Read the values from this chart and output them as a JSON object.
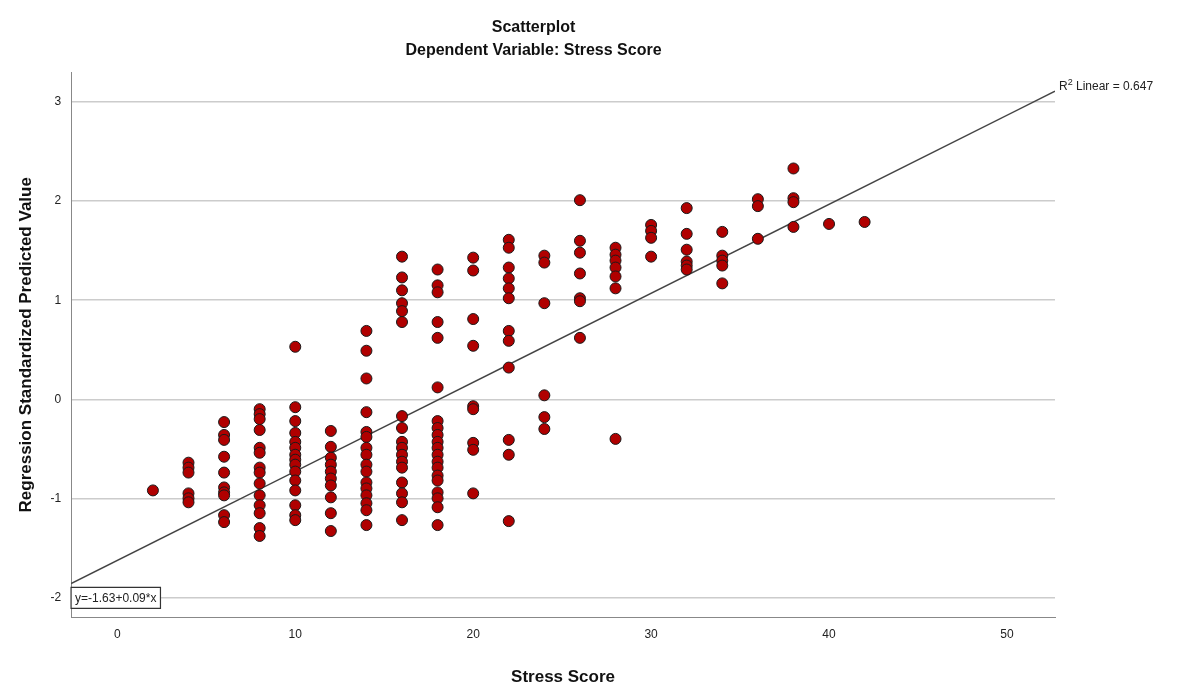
{
  "chart_data": {
    "type": "scatter",
    "title": "Scatterplot",
    "subtitle": "Dependent Variable: Stress Score",
    "xlabel": "Stress Score",
    "ylabel": "Regression Standardized Predicted Value",
    "xlim": [
      -2.6,
      52.7
    ],
    "ylim": [
      -2.2,
      3.3
    ],
    "xticks": [
      0,
      10,
      20,
      30,
      40,
      50
    ],
    "yticks": [
      -2,
      -1,
      0,
      1,
      2,
      3
    ],
    "grid": "y",
    "legend": false,
    "annotations": [
      "R$^{2}$ Linear = 0.647",
      "y=-1.63+0.09*x"
    ],
    "series": [
      {
        "type": "scatter",
        "marker": "circle",
        "color": "#b00000",
        "x": [
          2,
          4,
          4,
          4,
          4,
          4,
          4,
          6,
          6,
          6,
          6,
          6,
          6,
          6,
          6,
          6,
          6,
          8,
          8,
          8,
          8,
          8,
          8,
          8,
          8,
          8,
          8,
          8,
          8,
          8,
          8,
          10,
          10,
          10,
          10,
          10,
          10,
          10,
          10,
          10,
          10,
          10,
          10,
          10,
          10,
          10,
          12,
          12,
          12,
          12,
          12,
          12,
          12,
          12,
          12,
          12,
          14,
          14,
          14,
          14,
          14,
          14,
          14,
          14,
          14,
          14,
          14,
          14,
          14,
          14,
          14,
          14,
          16,
          16,
          16,
          16,
          16,
          16,
          16,
          16,
          16,
          16,
          16,
          16,
          16,
          16,
          16,
          16,
          16,
          18,
          18,
          18,
          18,
          18,
          18,
          18,
          18,
          18,
          18,
          18,
          18,
          18,
          18,
          18,
          18,
          18,
          18,
          18,
          18,
          20,
          20,
          20,
          20,
          20,
          20,
          20,
          20,
          20,
          22,
          22,
          22,
          22,
          22,
          22,
          22,
          22,
          22,
          22,
          22,
          22,
          24,
          24,
          24,
          24,
          24,
          24,
          26,
          26,
          26,
          26,
          26,
          26,
          26,
          28,
          28,
          28,
          28,
          28,
          28,
          28,
          30,
          30,
          30,
          30,
          32,
          32,
          32,
          32,
          32,
          32,
          34,
          34,
          34,
          34,
          34,
          36,
          36,
          36,
          38,
          38,
          38,
          38,
          40,
          42
        ],
        "values": [
          -0.92,
          -0.64,
          -0.69,
          -0.74,
          -0.95,
          -1.0,
          -1.04,
          -0.23,
          -0.36,
          -0.41,
          -0.58,
          -0.74,
          -0.89,
          -0.94,
          -0.97,
          -1.17,
          -1.24,
          -0.1,
          -0.15,
          -0.2,
          -0.31,
          -0.49,
          -0.54,
          -0.69,
          -0.74,
          -0.85,
          -0.97,
          -1.07,
          -1.15,
          -1.3,
          -1.38,
          0.53,
          -0.08,
          -0.22,
          -0.34,
          -0.43,
          -0.49,
          -0.56,
          -0.61,
          -0.66,
          -0.73,
          -0.82,
          -0.92,
          -1.07,
          -1.17,
          -1.22,
          -0.32,
          -0.48,
          -0.59,
          -0.66,
          -0.73,
          -0.8,
          -0.87,
          -0.99,
          -1.15,
          -1.33,
          0.69,
          0.49,
          0.21,
          -0.13,
          -0.33,
          -0.38,
          -0.49,
          -0.56,
          -0.66,
          -0.73,
          -0.84,
          -0.9,
          -0.97,
          -1.05,
          -1.12,
          -1.27,
          1.44,
          1.23,
          1.1,
          0.97,
          0.89,
          0.78,
          -0.17,
          -0.29,
          -0.43,
          -0.49,
          -0.56,
          -0.63,
          -0.69,
          -0.84,
          -0.95,
          -1.04,
          -1.22,
          1.31,
          1.15,
          1.08,
          0.78,
          0.62,
          0.12,
          -0.22,
          -0.29,
          -0.36,
          -0.43,
          -0.49,
          -0.56,
          -0.63,
          -0.69,
          -0.77,
          -0.82,
          -0.94,
          -1.0,
          -1.09,
          -1.27,
          1.43,
          1.3,
          0.81,
          0.54,
          -0.07,
          -0.1,
          -0.44,
          -0.51,
          -0.95,
          1.61,
          1.53,
          1.33,
          1.22,
          1.12,
          1.02,
          0.69,
          0.59,
          0.32,
          -0.41,
          -0.56,
          -1.23,
          1.45,
          1.38,
          0.97,
          0.04,
          -0.18,
          -0.3,
          2.01,
          1.6,
          1.48,
          1.27,
          1.02,
          0.99,
          0.62,
          1.53,
          1.46,
          1.4,
          1.33,
          1.24,
          1.12,
          -0.4,
          1.76,
          1.7,
          1.63,
          1.44,
          1.93,
          1.67,
          1.51,
          1.39,
          1.35,
          1.31,
          1.69,
          1.45,
          1.4,
          1.35,
          1.17,
          2.02,
          1.95,
          1.62,
          2.33,
          2.03,
          1.99,
          1.74,
          1.77,
          1.79
        ]
      },
      {
        "type": "line",
        "marker": "none",
        "color": "#444444",
        "x": [
          -2.6,
          52.7
        ],
        "values": [
          -1.86,
          3.11
        ]
      }
    ]
  }
}
